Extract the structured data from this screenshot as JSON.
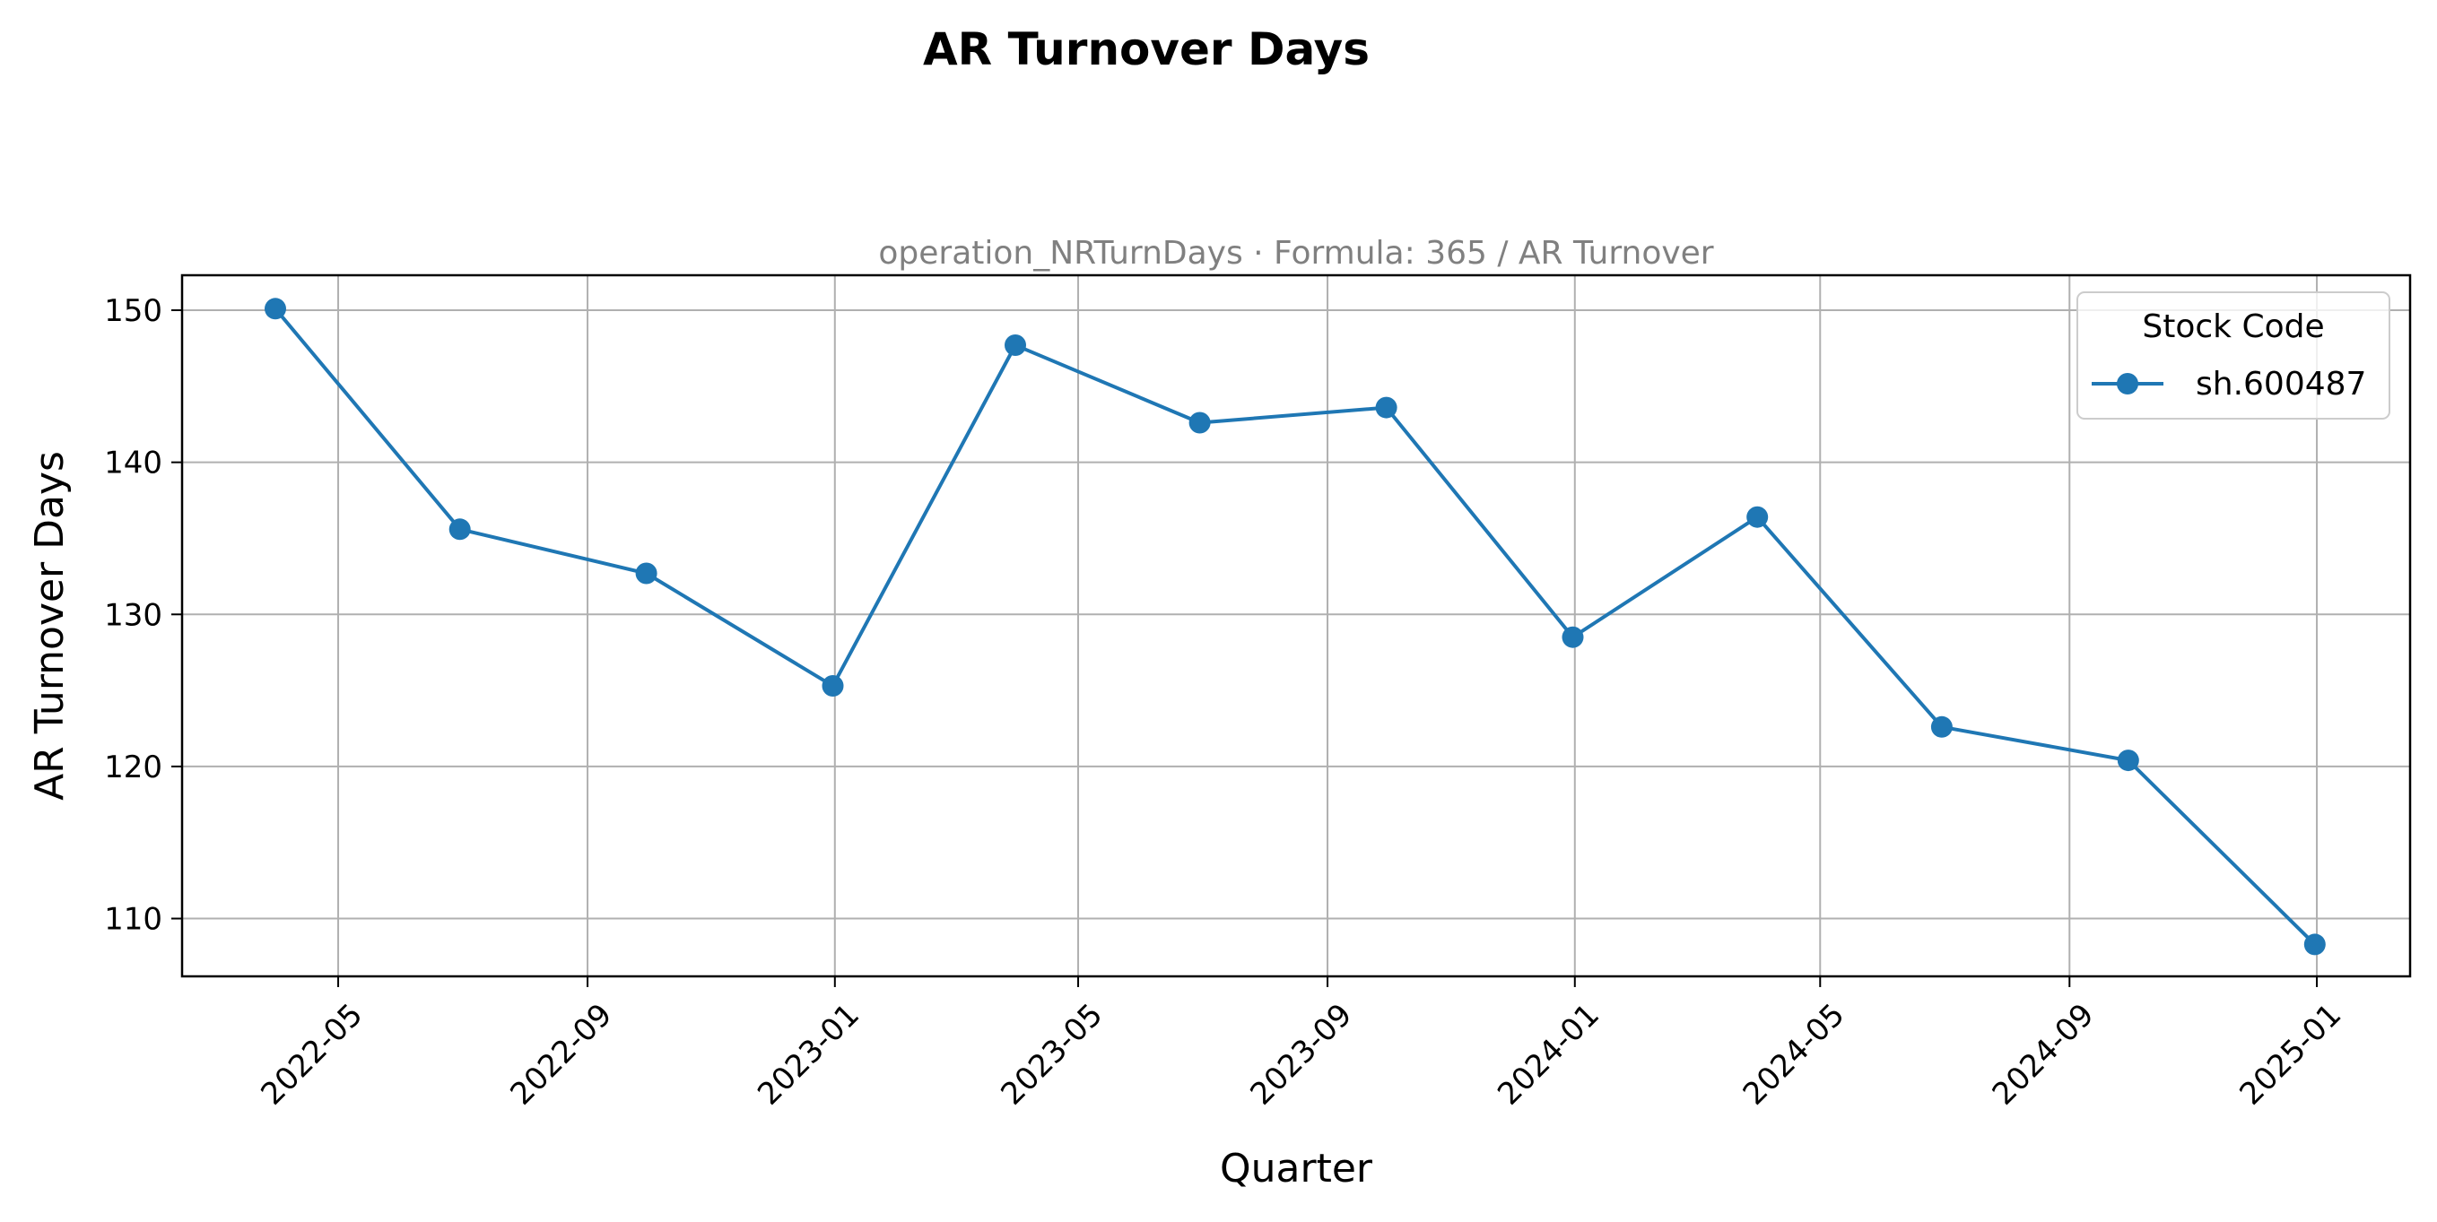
{
  "chart_data": {
    "type": "line",
    "title": "AR Turnover Days",
    "subtitle": "operation_NRTurnDays · Formula: 365 / AR Turnover",
    "xlabel": "Quarter",
    "ylabel": "AR Turnover Days",
    "x": [
      "2022-03-31",
      "2022-06-30",
      "2022-09-30",
      "2022-12-31",
      "2023-03-31",
      "2023-06-30",
      "2023-09-30",
      "2023-12-31",
      "2024-03-31",
      "2024-06-30",
      "2024-09-30",
      "2024-12-31"
    ],
    "series": [
      {
        "name": "sh.600487",
        "values": [
          150.1,
          135.6,
          132.7,
          125.3,
          147.7,
          142.6,
          143.6,
          128.5,
          136.4,
          122.6,
          120.4,
          108.3
        ],
        "color": "#1f77b4",
        "marker": "circle"
      }
    ],
    "xlim": [
      "2022-02-13",
      "2025-02-16"
    ],
    "ylim": [
      106.2,
      152.3
    ],
    "xticks": [
      "2022-05",
      "2022-09",
      "2023-01",
      "2023-05",
      "2023-09",
      "2024-01",
      "2024-05",
      "2024-09",
      "2025-01"
    ],
    "yticks": [
      110,
      120,
      130,
      140,
      150
    ],
    "grid": true,
    "legend": {
      "title": "Stock Code",
      "placement": "top-right"
    }
  }
}
